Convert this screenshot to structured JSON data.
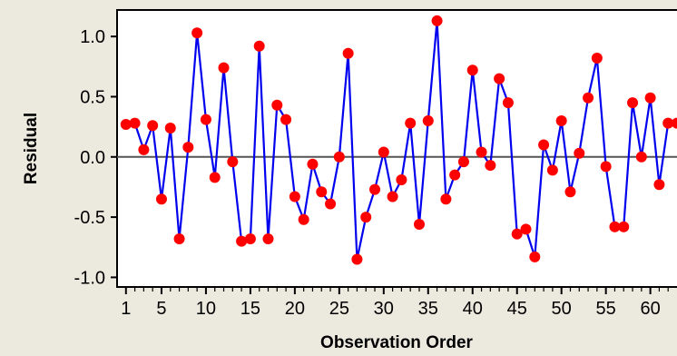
{
  "chart_data": {
    "type": "line",
    "title": "",
    "xlabel": "Observation Order",
    "ylabel": "Residual",
    "xlim": [
      0,
      63
    ],
    "ylim": [
      -1.08,
      1.22
    ],
    "x_ticks": [
      1,
      5,
      10,
      15,
      20,
      25,
      30,
      35,
      40,
      45,
      50,
      55,
      60
    ],
    "x_tick_labels": [
      "1",
      "5",
      "10",
      "15",
      "20",
      "25",
      "30",
      "35",
      "40",
      "45",
      "50",
      "55",
      "60"
    ],
    "y_ticks": [
      1.0,
      0.5,
      0.0,
      -0.5,
      -1.0
    ],
    "y_tick_labels": [
      "1.0",
      "0.5",
      "0.0",
      "-0.5",
      "-1.0"
    ],
    "reference_line": 0,
    "grid": false,
    "legend": "none",
    "line_color": "#0000ee",
    "marker_color": "#ff0000",
    "x": [
      1,
      2,
      3,
      4,
      5,
      6,
      7,
      8,
      9,
      10,
      11,
      12,
      13,
      14,
      15,
      16,
      17,
      18,
      19,
      20,
      21,
      22,
      23,
      24,
      25,
      26,
      27,
      28,
      29,
      30,
      31,
      32,
      33,
      34,
      35,
      36,
      37,
      38,
      39,
      40,
      41,
      42,
      43,
      44,
      45,
      46,
      47,
      48,
      49,
      50,
      51,
      52,
      53,
      54,
      55,
      56,
      57,
      58,
      59,
      60,
      61,
      62,
      63
    ],
    "values": [
      0.27,
      0.28,
      0.06,
      0.26,
      -0.35,
      0.24,
      -0.68,
      0.08,
      1.03,
      0.31,
      -0.17,
      0.74,
      -0.04,
      -0.7,
      -0.68,
      0.92,
      -0.68,
      0.43,
      0.31,
      -0.33,
      -0.52,
      -0.06,
      -0.29,
      -0.39,
      0.0,
      0.86,
      -0.85,
      -0.5,
      -0.27,
      0.04,
      -0.33,
      -0.19,
      0.28,
      -0.56,
      0.3,
      1.13,
      -0.35,
      -0.15,
      -0.04,
      0.72,
      0.04,
      -0.07,
      0.65,
      0.45,
      -0.64,
      -0.6,
      -0.83,
      0.1,
      -0.11,
      0.3,
      -0.29,
      0.03,
      0.49,
      0.82,
      -0.08,
      -0.58,
      -0.58,
      0.45,
      0.0,
      0.49,
      -0.23,
      0.28,
      0.28
    ]
  }
}
